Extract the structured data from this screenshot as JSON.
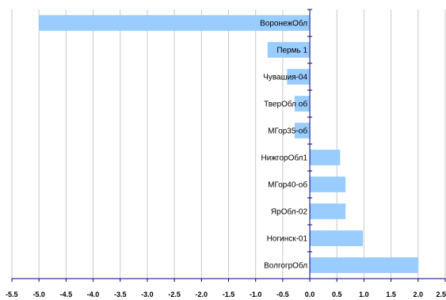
{
  "chart_data": {
    "type": "bar",
    "orientation": "horizontal",
    "title": "",
    "xlabel": "",
    "ylabel": "",
    "grid": true,
    "legend": "none",
    "bar_color": "#99ccff",
    "axis_color": "#00007a",
    "grid_color": "#c8c8c8",
    "xlim": [
      -5.5,
      2.5
    ],
    "x_ticks": [
      "-5.5",
      "-5.0",
      "-4.5",
      "-4.0",
      "-3.5",
      "-3.0",
      "-2.5",
      "-2.0",
      "-1.5",
      "-1.0",
      "-0.5",
      "0.0",
      "0.5",
      "1.0",
      "1.5",
      "2.0",
      "2.5"
    ],
    "x_tick_values": [
      -5.5,
      -5.0,
      -4.5,
      -4.0,
      -3.5,
      -3.0,
      -2.5,
      -2.0,
      -1.5,
      -1.0,
      -0.5,
      0.0,
      0.5,
      1.0,
      1.5,
      2.0,
      2.5
    ],
    "categories": [
      "ВоронежОбл",
      "Пермь 1",
      "Чувашия-04",
      "ТверОбл об",
      "МГор35-об",
      "НижгорОбл1",
      "МГор40-об",
      "ЯрОбл-02",
      "Ногинск-01",
      "ВолгогрОбл"
    ],
    "values": [
      -5.0,
      -0.78,
      -0.42,
      -0.28,
      -0.28,
      0.56,
      0.66,
      0.66,
      0.98,
      2.0
    ]
  }
}
